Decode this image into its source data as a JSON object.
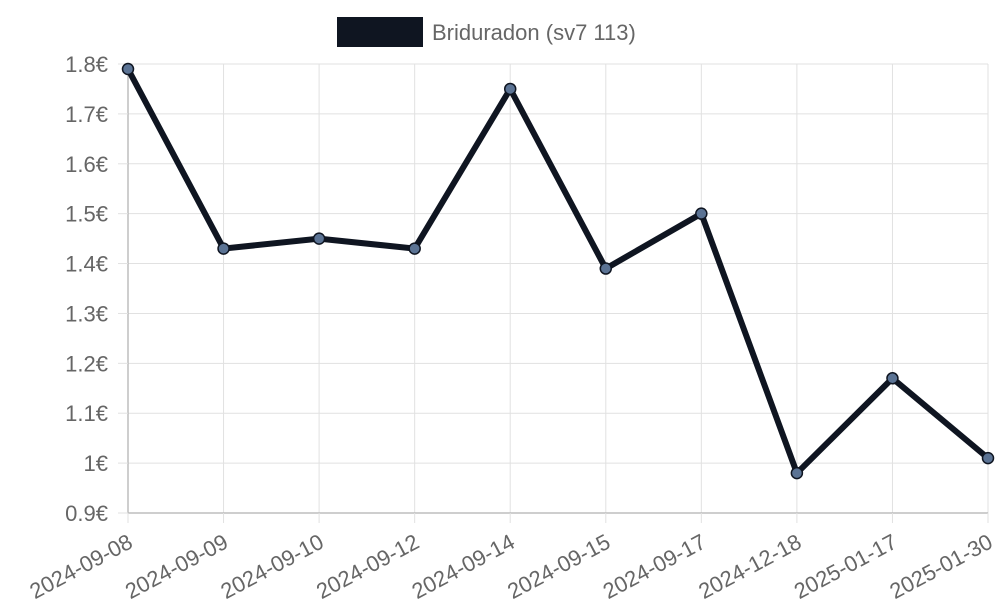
{
  "chart_data": {
    "type": "line",
    "legend": {
      "position": "top",
      "entries": [
        "Briduradon (sv7 113)"
      ]
    },
    "categories": [
      "2024-09-08",
      "2024-09-09",
      "2024-09-10",
      "2024-09-12",
      "2024-09-14",
      "2024-09-15",
      "2024-09-17",
      "2024-12-18",
      "2025-01-17",
      "2025-01-30"
    ],
    "series": [
      {
        "name": "Briduradon (sv7 113)",
        "values": [
          1.79,
          1.43,
          1.45,
          1.43,
          1.75,
          1.39,
          1.5,
          0.98,
          1.17,
          1.01
        ],
        "line_color": "#0f1521",
        "point_fill": "#5b7394"
      }
    ],
    "y_ticks": [
      0.9,
      1.0,
      1.1,
      1.2,
      1.3,
      1.4,
      1.5,
      1.6,
      1.7,
      1.8
    ],
    "y_tick_labels": [
      "0.9€",
      "1€",
      "1.1€",
      "1.2€",
      "1.3€",
      "1.4€",
      "1.5€",
      "1.6€",
      "1.7€",
      "1.8€"
    ],
    "ylim": [
      0.9,
      1.8
    ],
    "grid": true,
    "title": "",
    "xlabel": "",
    "ylabel": ""
  }
}
